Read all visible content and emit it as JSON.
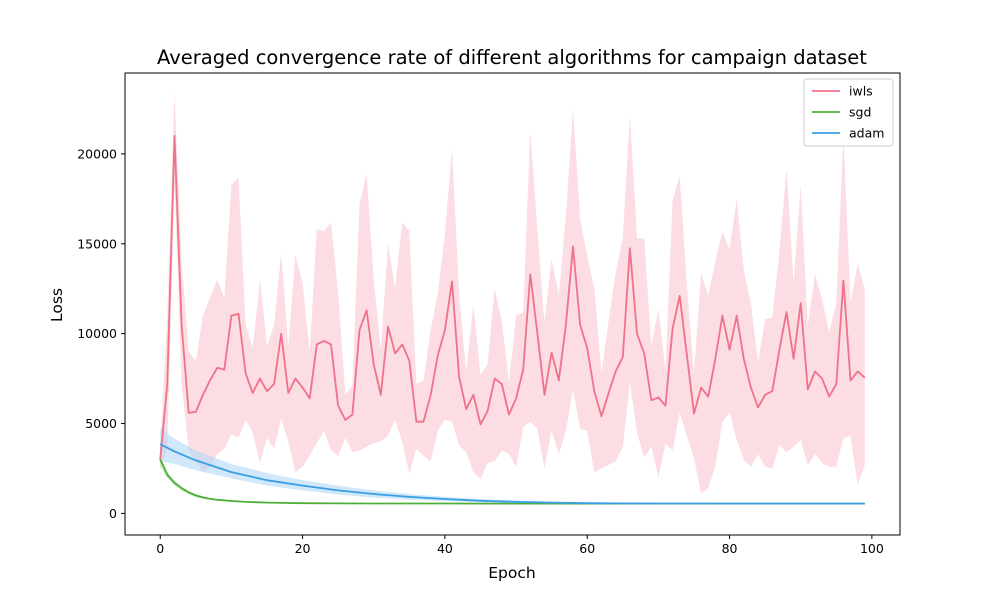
{
  "chart_data": {
    "type": "line",
    "title": "Averaged convergence rate of different algorithms for campaign dataset",
    "xlabel": "Epoch",
    "ylabel": "Loss",
    "xlim": [
      -4.95,
      103.95
    ],
    "ylim": [
      -1200,
      24500
    ],
    "xticks": [
      0,
      20,
      40,
      60,
      80,
      100
    ],
    "yticks": [
      0,
      5000,
      10000,
      15000,
      20000
    ],
    "grid": false,
    "legend_position": "top-right",
    "series": [
      {
        "name": "iwls",
        "color": "#f0728a",
        "band_color": "#f8c7d1",
        "x": [
          0,
          1,
          2,
          3,
          4,
          5,
          6,
          7,
          8,
          9,
          10,
          11,
          12,
          13,
          14,
          15,
          16,
          17,
          18,
          19,
          20,
          21,
          22,
          23,
          24,
          25,
          26,
          27,
          28,
          29,
          30,
          31,
          32,
          33,
          34,
          35,
          36,
          37,
          38,
          39,
          40,
          41,
          42,
          43,
          44,
          45,
          46,
          47,
          48,
          49,
          50,
          51,
          52,
          53,
          54,
          55,
          56,
          57,
          58,
          59,
          60,
          61,
          62,
          63,
          64,
          65,
          66,
          67,
          68,
          69,
          70,
          71,
          72,
          73,
          74,
          75,
          76,
          77,
          78,
          79,
          80,
          81,
          82,
          83,
          84,
          85,
          86,
          87,
          88,
          89,
          90,
          91,
          92,
          93,
          94,
          95,
          96,
          97,
          98,
          99
        ],
        "mean": [
          3000,
          7200,
          21000,
          10500,
          5600,
          5650,
          6600,
          7400,
          8100,
          8000,
          11000,
          11100,
          7800,
          6700,
          7500,
          6800,
          7200,
          10000,
          6700,
          7500,
          7000,
          6400,
          9400,
          9600,
          9400,
          6000,
          5200,
          5500,
          10200,
          11300,
          8300,
          6600,
          10400,
          8900,
          9400,
          8500,
          5100,
          5100,
          6600,
          8800,
          10200,
          12900,
          7600,
          5800,
          6600,
          4950,
          5700,
          7500,
          7200,
          5500,
          6400,
          8000,
          13300,
          10000,
          6600,
          8950,
          7400,
          10500,
          14850,
          10500,
          9200,
          6800,
          5400,
          6700,
          7900,
          8700,
          14750,
          10000,
          8900,
          6300,
          6450,
          6000,
          10300,
          12100,
          8800,
          5550,
          7000,
          6500,
          8600,
          11000,
          9100,
          11000,
          8600,
          7000,
          5900,
          6600,
          6800,
          9100,
          11200,
          8600,
          11700,
          6900,
          7900,
          7500,
          6500,
          7200,
          12950,
          7400,
          7900,
          7550
        ],
        "upper": [
          3600,
          11000,
          23400,
          14000,
          9000,
          8500,
          11000,
          12000,
          13000,
          12000,
          18300,
          18700,
          10500,
          9200,
          13000,
          9300,
          10500,
          14500,
          9300,
          14400,
          12800,
          9000,
          15800,
          15700,
          16200,
          12300,
          6600,
          7100,
          17200,
          18900,
          13000,
          9100,
          15000,
          12500,
          16200,
          15700,
          7200,
          7400,
          10200,
          12300,
          15500,
          20300,
          12200,
          7900,
          11600,
          7700,
          8300,
          12500,
          10700,
          7300,
          11000,
          11200,
          21300,
          15700,
          10600,
          14200,
          12100,
          16500,
          22500,
          16400,
          14300,
          12500,
          7800,
          10700,
          13400,
          15300,
          22200,
          15300,
          15300,
          9300,
          11400,
          7900,
          17400,
          18800,
          12600,
          7800,
          13400,
          12100,
          14000,
          15700,
          14700,
          17500,
          13500,
          11700,
          8400,
          10800,
          10900,
          14500,
          19200,
          12800,
          18300,
          10400,
          13300,
          11900,
          10100,
          11700,
          21000,
          11700,
          13900,
          12500
        ],
        "lower": [
          2500,
          3600,
          18500,
          7200,
          3500,
          2900,
          2300,
          2600,
          3300,
          3600,
          4400,
          4200,
          5200,
          4500,
          2800,
          4200,
          3600,
          5300,
          4000,
          2300,
          2600,
          3200,
          3900,
          4600,
          3500,
          3200,
          4200,
          3400,
          3500,
          3700,
          3900,
          4000,
          4300,
          5200,
          4000,
          2200,
          3600,
          3200,
          2900,
          4600,
          5200,
          5100,
          3800,
          3400,
          2300,
          1900,
          2800,
          2900,
          3500,
          3300,
          2600,
          4800,
          5100,
          4700,
          2500,
          4600,
          3300,
          4600,
          6900,
          4700,
          4600,
          2300,
          2500,
          2700,
          2900,
          3700,
          7300,
          4500,
          3100,
          3700,
          2000,
          3900,
          3500,
          5600,
          4300,
          3100,
          1100,
          1400,
          2600,
          5100,
          5600,
          4100,
          3000,
          2600,
          3300,
          2600,
          2500,
          3800,
          3400,
          3700,
          4100,
          2700,
          3300,
          2800,
          2600,
          2600,
          4200,
          4300,
          1600,
          2700
        ]
      },
      {
        "name": "sgd",
        "color": "#4daf3a",
        "band_color": "#b9e3b0",
        "x": [
          0,
          1,
          2,
          3,
          4,
          5,
          6,
          7,
          8,
          10,
          12,
          15,
          18,
          20,
          25,
          30,
          40,
          50,
          60,
          70,
          80,
          90,
          99
        ],
        "mean": [
          3000,
          2150,
          1700,
          1400,
          1170,
          1000,
          890,
          810,
          760,
          690,
          640,
          600,
          580,
          570,
          560,
          555,
          550,
          548,
          546,
          545,
          545,
          545,
          545
        ],
        "upper": [
          3200,
          2350,
          1850,
          1520,
          1270,
          1080,
          960,
          870,
          810,
          730,
          670,
          620,
          595,
          585,
          572,
          566,
          560,
          556,
          554,
          553,
          552,
          552,
          552
        ],
        "lower": [
          2600,
          1950,
          1550,
          1280,
          1070,
          920,
          820,
          750,
          710,
          650,
          610,
          580,
          565,
          555,
          548,
          544,
          540,
          540,
          538,
          537,
          538,
          538,
          538
        ]
      },
      {
        "name": "adam",
        "color": "#3b9ee3",
        "band_color": "#b3d9f7",
        "x": [
          0,
          2,
          5,
          10,
          15,
          20,
          25,
          30,
          35,
          40,
          45,
          50,
          55,
          60,
          65,
          70,
          75,
          80,
          85,
          90,
          95,
          99
        ],
        "mean": [
          3850,
          3450,
          2950,
          2300,
          1850,
          1550,
          1280,
          1080,
          920,
          800,
          700,
          640,
          600,
          570,
          560,
          555,
          550,
          548,
          547,
          546,
          545,
          545
        ],
        "upper": [
          4750,
          4150,
          3500,
          2750,
          2250,
          1850,
          1550,
          1280,
          1080,
          920,
          800,
          720,
          660,
          620,
          595,
          580,
          570,
          565,
          562,
          560,
          558,
          556
        ],
        "lower": [
          2900,
          2750,
          2400,
          1950,
          1550,
          1280,
          1050,
          880,
          760,
          680,
          620,
          580,
          560,
          545,
          538,
          535,
          533,
          532,
          532,
          531,
          531,
          531
        ]
      }
    ]
  }
}
